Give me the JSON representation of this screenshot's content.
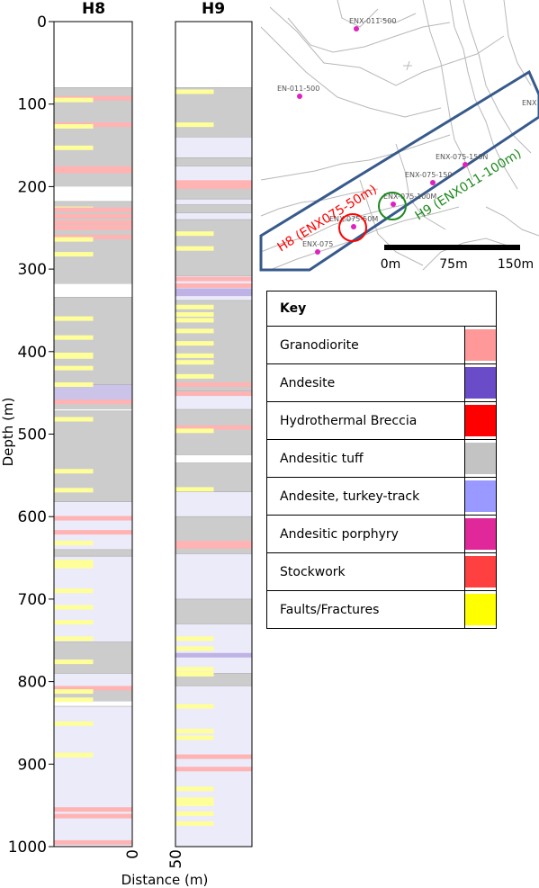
{
  "chart_data": {
    "type": "strip-log",
    "columns": [
      {
        "title": "H8",
        "intervals": [
          [
            80,
            200,
            "andesitic_tuff"
          ],
          [
            218,
            318,
            "andesitic_tuff"
          ],
          [
            334,
            440,
            "andesitic_tuff"
          ],
          [
            440,
            460,
            "andesite"
          ],
          [
            460,
            470,
            "andesitic_tuff"
          ],
          [
            472,
            582,
            "andesitic_tuff"
          ],
          [
            582,
            640,
            "turkey_track"
          ],
          [
            640,
            648,
            "andesitic_tuff"
          ],
          [
            648,
            752,
            "turkey_track"
          ],
          [
            752,
            790,
            "andesitic_tuff"
          ],
          [
            790,
            806,
            "turkey_track"
          ],
          [
            806,
            824,
            "andesitic_tuff"
          ],
          [
            830,
            1000,
            "turkey_track"
          ]
        ],
        "bands": [
          [
            93,
            "granodiorite"
          ],
          [
            95,
            "faults"
          ],
          [
            125,
            "granodiorite"
          ],
          [
            127,
            "faults"
          ],
          [
            153,
            "faults"
          ],
          [
            178,
            "granodiorite"
          ],
          [
            181,
            "granodiorite"
          ],
          [
            227,
            "faults"
          ],
          [
            228,
            "granodiorite"
          ],
          [
            236,
            "granodiorite"
          ],
          [
            244,
            "granodiorite"
          ],
          [
            250,
            "granodiorite"
          ],
          [
            261,
            "granodiorite"
          ],
          [
            264,
            "faults"
          ],
          [
            282,
            "faults"
          ],
          [
            360,
            "faults"
          ],
          [
            383,
            "faults"
          ],
          [
            404,
            "faults"
          ],
          [
            406,
            "faults"
          ],
          [
            420,
            "faults"
          ],
          [
            440,
            "faults"
          ],
          [
            461,
            "granodiorite"
          ],
          [
            482,
            "faults"
          ],
          [
            545,
            "faults"
          ],
          [
            568,
            "faults"
          ],
          [
            602,
            "granodiorite"
          ],
          [
            619,
            "granodiorite"
          ],
          [
            632,
            "faults"
          ],
          [
            655,
            "faults"
          ],
          [
            660,
            "faults"
          ],
          [
            690,
            "faults"
          ],
          [
            710,
            "faults"
          ],
          [
            728,
            "faults"
          ],
          [
            748,
            "faults"
          ],
          [
            776,
            "faults"
          ],
          [
            808,
            "granodiorite"
          ],
          [
            812,
            "faults"
          ],
          [
            822,
            "faults"
          ],
          [
            851,
            "faults"
          ],
          [
            889,
            "faults"
          ],
          [
            955,
            "granodiorite"
          ],
          [
            963,
            "granodiorite"
          ],
          [
            995,
            "granodiorite"
          ]
        ]
      },
      {
        "title": "H9",
        "intervals": [
          [
            80,
            140,
            "andesitic_tuff"
          ],
          [
            140,
            165,
            "turkey_track"
          ],
          [
            165,
            175,
            "andesitic_tuff"
          ],
          [
            175,
            193,
            "turkey_track"
          ],
          [
            193,
            215,
            "andesitic_tuff"
          ],
          [
            215,
            222,
            "turkey_track"
          ],
          [
            222,
            232,
            "andesitic_tuff"
          ],
          [
            232,
            240,
            "turkey_track"
          ],
          [
            240,
            308,
            "andesitic_tuff"
          ],
          [
            308,
            338,
            "turkey_track"
          ],
          [
            338,
            448,
            "andesitic_tuff"
          ],
          [
            448,
            470,
            "turkey_track"
          ],
          [
            470,
            525,
            "andesitic_tuff"
          ],
          [
            525,
            535,
            "blank"
          ],
          [
            535,
            570,
            "andesitic_tuff"
          ],
          [
            570,
            600,
            "turkey_track"
          ],
          [
            600,
            645,
            "andesitic_tuff"
          ],
          [
            645,
            700,
            "turkey_track"
          ],
          [
            700,
            730,
            "andesitic_tuff"
          ],
          [
            730,
            790,
            "turkey_track"
          ],
          [
            790,
            805,
            "andesitic_tuff"
          ],
          [
            805,
            1000,
            "turkey_track"
          ]
        ],
        "bands": [
          [
            85,
            "faults"
          ],
          [
            125,
            "faults"
          ],
          [
            195,
            "granodiorite"
          ],
          [
            200,
            "granodiorite"
          ],
          [
            257,
            "faults"
          ],
          [
            275,
            "faults"
          ],
          [
            312,
            "granodiorite"
          ],
          [
            320,
            "granodiorite"
          ],
          [
            326,
            "andesite"
          ],
          [
            330,
            "andesite"
          ],
          [
            346,
            "faults"
          ],
          [
            355,
            "faults"
          ],
          [
            362,
            "faults"
          ],
          [
            375,
            "faults"
          ],
          [
            390,
            "faults"
          ],
          [
            405,
            "faults"
          ],
          [
            413,
            "faults"
          ],
          [
            430,
            "faults"
          ],
          [
            440,
            "granodiorite"
          ],
          [
            451,
            "granodiorite"
          ],
          [
            492,
            "granodiorite"
          ],
          [
            496,
            "faults"
          ],
          [
            567,
            "faults"
          ],
          [
            632,
            "granodiorite"
          ],
          [
            636,
            "granodiorite"
          ],
          [
            748,
            "faults"
          ],
          [
            760,
            "faults"
          ],
          [
            768,
            "andesite"
          ],
          [
            785,
            "faults"
          ],
          [
            791,
            "faults"
          ],
          [
            830,
            "faults"
          ],
          [
            860,
            "faults"
          ],
          [
            868,
            "faults"
          ],
          [
            891,
            "granodiorite"
          ],
          [
            906,
            "granodiorite"
          ],
          [
            930,
            "faults"
          ],
          [
            943,
            "faults"
          ],
          [
            948,
            "faults"
          ],
          [
            960,
            "faults"
          ],
          [
            972,
            "faults"
          ]
        ]
      }
    ],
    "ylim": [
      0,
      1000
    ],
    "yticks": [
      "0",
      "100",
      "200",
      "300",
      "400",
      "500",
      "600",
      "700",
      "800",
      "900",
      "1000"
    ],
    "ylabel": "Depth (m)",
    "xlabel": "Distance (m)",
    "xtick_h8": "0",
    "xtick_h9": "50"
  },
  "palette": {
    "granodiorite": "#ff9999",
    "andesite": "#6a4bc8",
    "breccia": "#ff0000",
    "andesitic_tuff": "#c3c3c3",
    "turkey_track": "#9999ff",
    "porphyry": "#e0289a",
    "stockwork": "#ff4040",
    "faults": "#ffff00"
  },
  "map": {
    "labels": [
      "ENX-011-500",
      "EN-011-500",
      "ENX-075-150N",
      "ENX-075-150",
      "ENX-075-100M",
      "ENX-075-50M",
      "ENX-075",
      "ENX"
    ],
    "h8_label": "H8 (ENX075-50m)",
    "h9_label": "H9 (ENX011-100m)",
    "h8_color": "#ff0000",
    "h9_color": "#1e8a1e",
    "scale_labels": [
      "0m",
      "75m",
      "150m"
    ]
  },
  "key": {
    "title": "Key",
    "items": [
      {
        "label": "Granodiorite",
        "color": "#ff9999"
      },
      {
        "label": "Andesite",
        "color": "#6a4bc8"
      },
      {
        "label": "Hydrothermal Breccia",
        "color": "#ff0000"
      },
      {
        "label": "Andesitic tuff",
        "color": "#c3c3c3"
      },
      {
        "label": "Andesite, turkey-track",
        "color": "#9999ff"
      },
      {
        "label": "Andesitic porphyry",
        "color": "#e0289a"
      },
      {
        "label": "Stockwork",
        "color": "#ff4040"
      },
      {
        "label": "Faults/Fractures",
        "color": "#ffff00"
      }
    ]
  }
}
